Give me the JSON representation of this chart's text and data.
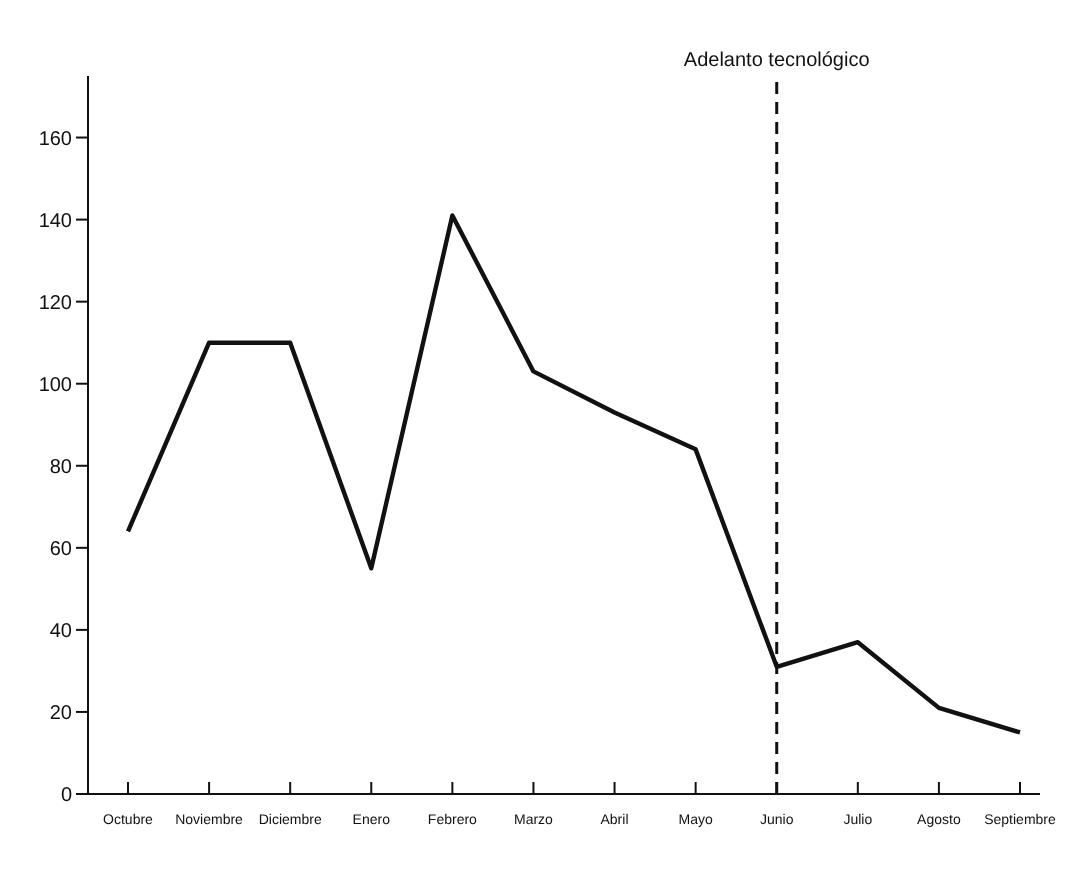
{
  "chart_data": {
    "type": "line",
    "categories": [
      "Octubre",
      "Noviembre",
      "Diciembre",
      "Enero",
      "Febrero",
      "Marzo",
      "Abril",
      "Mayo",
      "Junio",
      "Julio",
      "Agosto",
      "Septiembre"
    ],
    "series": [
      {
        "color": "#111111",
        "values": [
          64,
          110,
          110,
          55,
          141,
          103,
          93,
          84,
          31,
          37,
          21,
          15
        ]
      }
    ],
    "ylim": [
      0,
      175
    ],
    "yticks": [
      0,
      20,
      40,
      60,
      80,
      100,
      120,
      140,
      160
    ],
    "ref_lines": [
      {
        "axis": "x",
        "value": "Junio",
        "label": "Adelanto tecnológico",
        "line_style": "dashed",
        "color": "#111111"
      }
    ],
    "grid": false,
    "legend": false,
    "marker": "none",
    "line_style": "solid"
  }
}
